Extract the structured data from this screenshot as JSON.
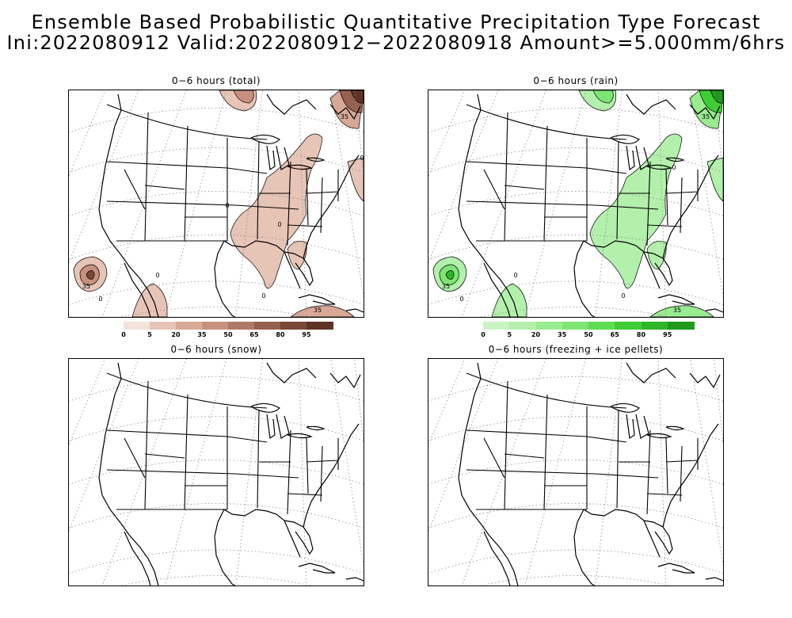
{
  "header": {
    "line1": "Ensemble Based Probabilistic Quantitative Precipitation Type Forecast",
    "line2": "Ini:2022080912 Valid:2022080912−2022080918 Amount>=5.000mm/6hrs"
  },
  "panels": [
    {
      "id": "total",
      "title": "0−6 hours (total)"
    },
    {
      "id": "rain",
      "title": "0−6 hours (rain)"
    },
    {
      "id": "snow",
      "title": "0−6 hours (snow)"
    },
    {
      "id": "freezing",
      "title": "0−6 hours (freezing + ice pellets)"
    }
  ],
  "colorbars": {
    "total": {
      "labels": [
        "0",
        "5",
        "20",
        "35",
        "50",
        "65",
        "80",
        "95"
      ],
      "colors": [
        "#f3e3dc",
        "#e6c4b6",
        "#d8a996",
        "#c8907e",
        "#b07868",
        "#966050",
        "#7a4838",
        "#5e3424"
      ]
    },
    "rain": {
      "labels": [
        "0",
        "5",
        "20",
        "35",
        "50",
        "65",
        "80",
        "95"
      ],
      "colors": [
        "#c9f5c4",
        "#b2f0ab",
        "#99eb90",
        "#7ee575",
        "#5ddc52",
        "#3fcd36",
        "#2eb627",
        "#1f9a1c"
      ]
    }
  },
  "contour_labels": {
    "total": [
      "35",
      "35",
      "0",
      "0",
      "0",
      "0",
      "0",
      "0",
      "35"
    ],
    "rain": [
      "35",
      "35",
      "0",
      "0",
      "0",
      "0",
      "35"
    ]
  }
}
